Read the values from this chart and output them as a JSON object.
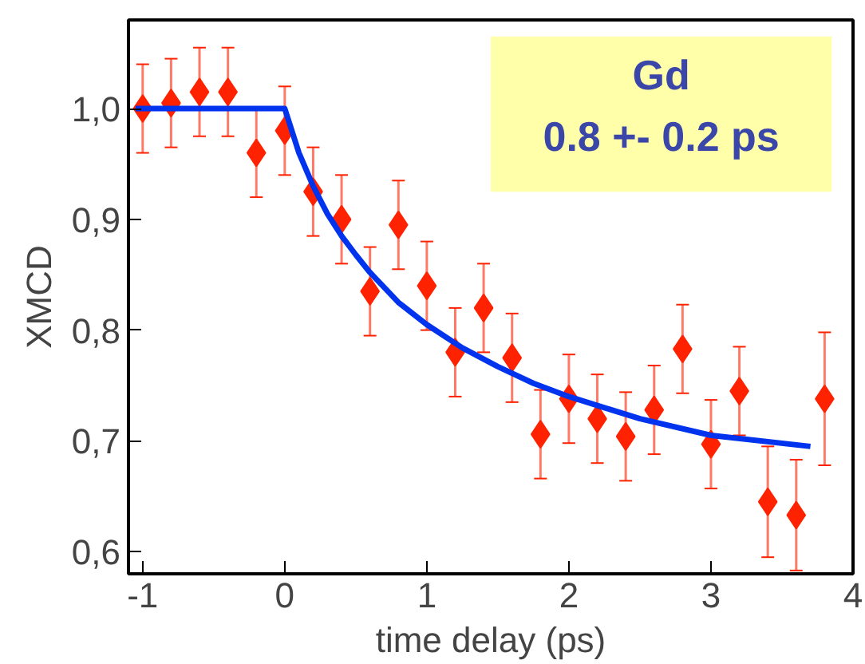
{
  "chart_data": {
    "type": "scatter",
    "xlabel": "time delay (ps)",
    "ylabel": "XMCD",
    "x": [
      -1,
      -0.8,
      -0.6,
      -0.4,
      -0.2,
      0,
      0.2,
      0.4,
      0.6,
      0.8,
      1.0,
      1.2,
      1.4,
      1.6,
      1.8,
      2.0,
      2.2,
      2.4,
      2.6,
      2.8,
      3.0,
      3.2,
      3.4,
      3.6,
      3.8
    ],
    "series": [
      {
        "color": "#ff2200",
        "marker": "diamond",
        "values": [
          1.0,
          1.005,
          1.015,
          1.015,
          0.96,
          0.98,
          0.925,
          0.9,
          0.835,
          0.895,
          0.84,
          0.78,
          0.82,
          0.775,
          0.706,
          0.738,
          0.72,
          0.704,
          0.728,
          0.783,
          0.697,
          0.745,
          0.645,
          0.633,
          0.738
        ],
        "errors": [
          0.04,
          0.04,
          0.04,
          0.04,
          0.04,
          0.04,
          0.04,
          0.04,
          0.04,
          0.04,
          0.04,
          0.04,
          0.04,
          0.04,
          0.04,
          0.04,
          0.04,
          0.04,
          0.04,
          0.04,
          0.04,
          0.04,
          0.05,
          0.05,
          0.06
        ]
      },
      {
        "type": "line",
        "color": "#0033ee",
        "x": [
          -1.05,
          0,
          0.1,
          0.2,
          0.3,
          0.4,
          0.5,
          0.6,
          0.8,
          1.0,
          1.25,
          1.5,
          1.75,
          2.0,
          2.25,
          2.5,
          3.0,
          3.7
        ],
        "values": [
          1.0,
          1.0,
          0.96,
          0.93,
          0.905,
          0.885,
          0.868,
          0.852,
          0.825,
          0.805,
          0.784,
          0.767,
          0.752,
          0.74,
          0.73,
          0.72,
          0.705,
          0.695
        ]
      }
    ],
    "annotations": [
      "Gd",
      "0.8 +- 0.2 ps"
    ],
    "xlim": [
      -1.1,
      4.0
    ],
    "xticks": [
      -1,
      0,
      1,
      2,
      3,
      4
    ],
    "ylim": [
      0.58,
      1.08
    ],
    "yticks": [
      {
        "value": 0.6,
        "label": "0,6"
      },
      {
        "value": 0.7,
        "label": "0,7"
      },
      {
        "value": 0.8,
        "label": "0,8"
      },
      {
        "value": 0.9,
        "label": "0,9"
      },
      {
        "value": 1.0,
        "label": "1,0"
      }
    ],
    "grid": false
  }
}
